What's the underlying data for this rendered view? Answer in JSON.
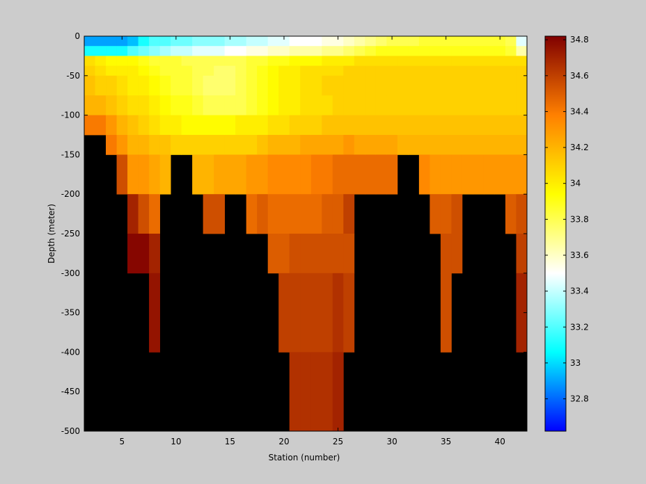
{
  "chart_data": [
    {
      "type": "heatmap",
      "xlabel": "Station (number)",
      "ylabel": "Depth (meter)",
      "xlim": [
        1.5,
        42.5
      ],
      "ylim": [
        -500,
        0
      ],
      "xticks": [
        5,
        10,
        15,
        20,
        25,
        30,
        35,
        40
      ],
      "yticks": [
        0,
        -50,
        -100,
        -150,
        -200,
        -250,
        -300,
        -350,
        -400,
        -450,
        -500
      ],
      "no_data_color": "#000000",
      "stations": [
        2,
        42
      ],
      "depth_bins": [
        [
          0,
          -12.5
        ],
        [
          -12.5,
          -25
        ],
        [
          -25,
          -37.5
        ],
        [
          -37.5,
          -50
        ],
        [
          -50,
          -75
        ],
        [
          -75,
          -100
        ],
        [
          -100,
          -125
        ],
        [
          -125,
          -150
        ],
        [
          -150,
          -200
        ],
        [
          -200,
          -250
        ],
        [
          -250,
          -300
        ],
        [
          -300,
          -400
        ],
        [
          -400,
          -500
        ]
      ],
      "salinity_profiles": [
        {
          "stations": [
            2,
            2
          ],
          "values": [
            32.9,
            33.1,
            34.05,
            34.1,
            34.15,
            34.2,
            34.4,
            null,
            null,
            null,
            null,
            null,
            null
          ]
        },
        {
          "stations": [
            3,
            3
          ],
          "values": [
            32.9,
            33.1,
            34.0,
            34.05,
            34.1,
            34.2,
            34.4,
            null,
            null,
            null,
            null,
            null,
            null
          ]
        },
        {
          "stations": [
            4,
            4
          ],
          "values": [
            32.9,
            33.1,
            33.95,
            34.0,
            34.1,
            34.15,
            34.3,
            34.4,
            null,
            null,
            null,
            null,
            null
          ]
        },
        {
          "stations": [
            5,
            5
          ],
          "values": [
            32.9,
            33.1,
            33.95,
            34.0,
            34.05,
            34.1,
            34.2,
            34.3,
            34.55,
            null,
            null,
            null,
            null
          ]
        },
        {
          "stations": [
            6,
            6
          ],
          "values": [
            32.95,
            33.2,
            33.95,
            34.0,
            34.0,
            34.05,
            34.15,
            34.2,
            34.3,
            34.7,
            34.8,
            null,
            null
          ]
        },
        {
          "stations": [
            7,
            7
          ],
          "values": [
            33.1,
            33.25,
            33.9,
            33.95,
            34.0,
            34.05,
            34.1,
            34.2,
            34.3,
            34.55,
            34.8,
            null,
            null
          ]
        },
        {
          "stations": [
            8,
            8
          ],
          "values": [
            33.2,
            33.3,
            33.85,
            33.9,
            33.95,
            34.0,
            34.05,
            34.15,
            34.25,
            34.45,
            34.7,
            34.75,
            null
          ]
        },
        {
          "stations": [
            9,
            9
          ],
          "values": [
            33.2,
            33.35,
            33.85,
            33.85,
            33.9,
            33.95,
            34.0,
            34.15,
            34.2,
            null,
            null,
            null,
            null
          ]
        },
        {
          "stations": [
            10,
            10
          ],
          "values": [
            33.25,
            33.4,
            33.85,
            33.85,
            33.85,
            33.9,
            34.0,
            34.1,
            null,
            null,
            null,
            null,
            null
          ]
        },
        {
          "stations": [
            11,
            11
          ],
          "values": [
            33.25,
            33.4,
            33.8,
            33.85,
            33.85,
            33.9,
            33.95,
            34.1,
            null,
            null,
            null,
            null,
            null
          ]
        },
        {
          "stations": [
            12,
            12
          ],
          "values": [
            33.3,
            33.45,
            33.8,
            33.8,
            33.8,
            33.85,
            33.95,
            34.1,
            34.2,
            null,
            null,
            null,
            null
          ]
        },
        {
          "stations": [
            13,
            13
          ],
          "values": [
            33.3,
            33.45,
            33.8,
            33.8,
            33.75,
            33.8,
            33.95,
            34.1,
            34.2,
            34.55,
            null,
            null,
            null
          ]
        },
        {
          "stations": [
            14,
            14
          ],
          "values": [
            33.3,
            33.45,
            33.8,
            33.75,
            33.75,
            33.8,
            33.95,
            34.1,
            34.25,
            34.55,
            null,
            null,
            null
          ]
        },
        {
          "stations": [
            15,
            15
          ],
          "values": [
            33.35,
            33.5,
            33.8,
            33.75,
            33.75,
            33.8,
            33.95,
            34.1,
            34.25,
            null,
            null,
            null,
            null
          ]
        },
        {
          "stations": [
            16,
            16
          ],
          "values": [
            33.35,
            33.5,
            33.8,
            33.8,
            33.8,
            33.8,
            34.0,
            34.1,
            34.25,
            null,
            null,
            null,
            null
          ]
        },
        {
          "stations": [
            17,
            17
          ],
          "values": [
            33.4,
            33.55,
            33.85,
            33.85,
            33.85,
            33.85,
            34.0,
            34.1,
            34.3,
            34.45,
            null,
            null,
            null
          ]
        },
        {
          "stations": [
            18,
            18
          ],
          "values": [
            33.4,
            33.55,
            33.85,
            33.9,
            33.9,
            33.9,
            34.0,
            34.15,
            34.3,
            34.5,
            null,
            null,
            null
          ]
        },
        {
          "stations": [
            19,
            19
          ],
          "values": [
            33.45,
            33.6,
            33.9,
            33.95,
            33.95,
            33.95,
            34.05,
            34.2,
            34.35,
            34.45,
            34.5,
            null,
            null
          ]
        },
        {
          "stations": [
            20,
            20
          ],
          "values": [
            33.45,
            33.6,
            33.9,
            34.0,
            34.0,
            34.0,
            34.05,
            34.2,
            34.35,
            34.45,
            34.5,
            34.6,
            null
          ]
        },
        {
          "stations": [
            21,
            21
          ],
          "values": [
            33.5,
            33.65,
            33.95,
            34.0,
            34.0,
            34.0,
            34.1,
            34.2,
            34.35,
            34.45,
            34.55,
            34.6,
            34.65
          ]
        },
        {
          "stations": [
            22,
            22
          ],
          "values": [
            33.5,
            33.65,
            33.95,
            34.05,
            34.05,
            34.05,
            34.1,
            34.25,
            34.35,
            34.45,
            34.55,
            34.6,
            34.65
          ]
        },
        {
          "stations": [
            23,
            23
          ],
          "values": [
            33.5,
            33.65,
            33.95,
            34.05,
            34.05,
            34.05,
            34.1,
            34.25,
            34.4,
            34.45,
            34.55,
            34.6,
            34.65
          ]
        },
        {
          "stations": [
            24,
            24
          ],
          "values": [
            33.55,
            33.7,
            34.0,
            34.05,
            34.1,
            34.05,
            34.15,
            34.25,
            34.4,
            34.5,
            34.55,
            34.6,
            34.65
          ]
        },
        {
          "stations": [
            25,
            25
          ],
          "values": [
            33.55,
            33.7,
            34.0,
            34.05,
            34.1,
            34.1,
            34.15,
            34.25,
            34.45,
            34.5,
            34.55,
            34.65,
            34.7
          ]
        },
        {
          "stations": [
            26,
            26
          ],
          "values": [
            33.6,
            33.75,
            34.0,
            34.1,
            34.1,
            34.1,
            34.15,
            34.3,
            34.45,
            34.6,
            34.55,
            34.6,
            null
          ]
        },
        {
          "stations": [
            27,
            27
          ],
          "values": [
            33.65,
            33.8,
            34.05,
            34.1,
            34.1,
            34.1,
            34.15,
            34.25,
            34.45,
            null,
            null,
            null,
            null
          ]
        },
        {
          "stations": [
            28,
            28
          ],
          "values": [
            33.7,
            33.85,
            34.05,
            34.1,
            34.1,
            34.1,
            34.15,
            34.25,
            34.45,
            null,
            null,
            null,
            null
          ]
        },
        {
          "stations": [
            29,
            29
          ],
          "values": [
            33.75,
            33.9,
            34.05,
            34.1,
            34.1,
            34.1,
            34.15,
            34.25,
            34.45,
            null,
            null,
            null,
            null
          ]
        },
        {
          "stations": [
            30,
            30
          ],
          "values": [
            33.8,
            33.9,
            34.05,
            34.1,
            34.1,
            34.1,
            34.15,
            34.25,
            34.45,
            null,
            null,
            null,
            null
          ]
        },
        {
          "stations": [
            31,
            31
          ],
          "values": [
            33.8,
            33.9,
            34.05,
            34.1,
            34.1,
            34.1,
            34.15,
            34.2,
            null,
            null,
            null,
            null,
            null
          ]
        },
        {
          "stations": [
            32,
            32
          ],
          "values": [
            33.8,
            33.9,
            34.05,
            34.1,
            34.1,
            34.1,
            34.15,
            34.2,
            null,
            null,
            null,
            null,
            null
          ]
        },
        {
          "stations": [
            33,
            33
          ],
          "values": [
            33.85,
            33.9,
            34.05,
            34.1,
            34.1,
            34.1,
            34.15,
            34.2,
            34.35,
            null,
            null,
            null,
            null
          ]
        },
        {
          "stations": [
            34,
            34
          ],
          "values": [
            33.85,
            33.9,
            34.05,
            34.1,
            34.1,
            34.1,
            34.15,
            34.2,
            34.3,
            34.5,
            null,
            null,
            null
          ]
        },
        {
          "stations": [
            35,
            35
          ],
          "values": [
            33.85,
            33.9,
            34.05,
            34.1,
            34.1,
            34.1,
            34.15,
            34.2,
            34.3,
            34.5,
            34.55,
            34.55,
            null
          ]
        },
        {
          "stations": [
            36,
            36
          ],
          "values": [
            33.85,
            33.9,
            34.05,
            34.1,
            34.1,
            34.1,
            34.15,
            34.2,
            34.3,
            34.55,
            34.55,
            null,
            null
          ]
        },
        {
          "stations": [
            37,
            37
          ],
          "values": [
            33.85,
            33.9,
            34.05,
            34.1,
            34.1,
            34.1,
            34.15,
            34.2,
            34.3,
            null,
            null,
            null,
            null
          ]
        },
        {
          "stations": [
            38,
            38
          ],
          "values": [
            33.85,
            33.9,
            34.05,
            34.1,
            34.1,
            34.1,
            34.15,
            34.2,
            34.3,
            null,
            null,
            null,
            null
          ]
        },
        {
          "stations": [
            39,
            39
          ],
          "values": [
            33.85,
            33.9,
            34.05,
            34.1,
            34.1,
            34.1,
            34.15,
            34.2,
            34.3,
            null,
            null,
            null,
            null
          ]
        },
        {
          "stations": [
            40,
            40
          ],
          "values": [
            33.85,
            33.9,
            34.05,
            34.1,
            34.1,
            34.1,
            34.15,
            34.2,
            34.3,
            null,
            null,
            null,
            null
          ]
        },
        {
          "stations": [
            41,
            41
          ],
          "values": [
            33.8,
            33.85,
            34.05,
            34.1,
            34.1,
            34.1,
            34.15,
            34.2,
            34.3,
            34.5,
            null,
            null,
            null
          ]
        },
        {
          "stations": [
            42,
            42
          ],
          "values": [
            33.45,
            33.65,
            34.05,
            34.1,
            34.1,
            34.1,
            34.15,
            34.2,
            34.3,
            34.55,
            34.6,
            34.7,
            null
          ]
        }
      ]
    },
    {
      "type": "colorbar",
      "clim": [
        32.62,
        34.82
      ],
      "ticks": [
        32.8,
        33.0,
        33.2,
        33.4,
        33.6,
        33.8,
        34.0,
        34.2,
        34.4,
        34.6,
        34.8
      ],
      "tick_labels": [
        "32.8",
        "33",
        "33.2",
        "33.4",
        "33.6",
        "33.8",
        "34",
        "34.2",
        "34.4",
        "34.6",
        "34.8"
      ],
      "colormap": "jet-like",
      "colors": [
        "#0000ff",
        "#00ffff",
        "#ffffff",
        "#ffff00",
        "#ff8000",
        "#800000"
      ]
    }
  ]
}
